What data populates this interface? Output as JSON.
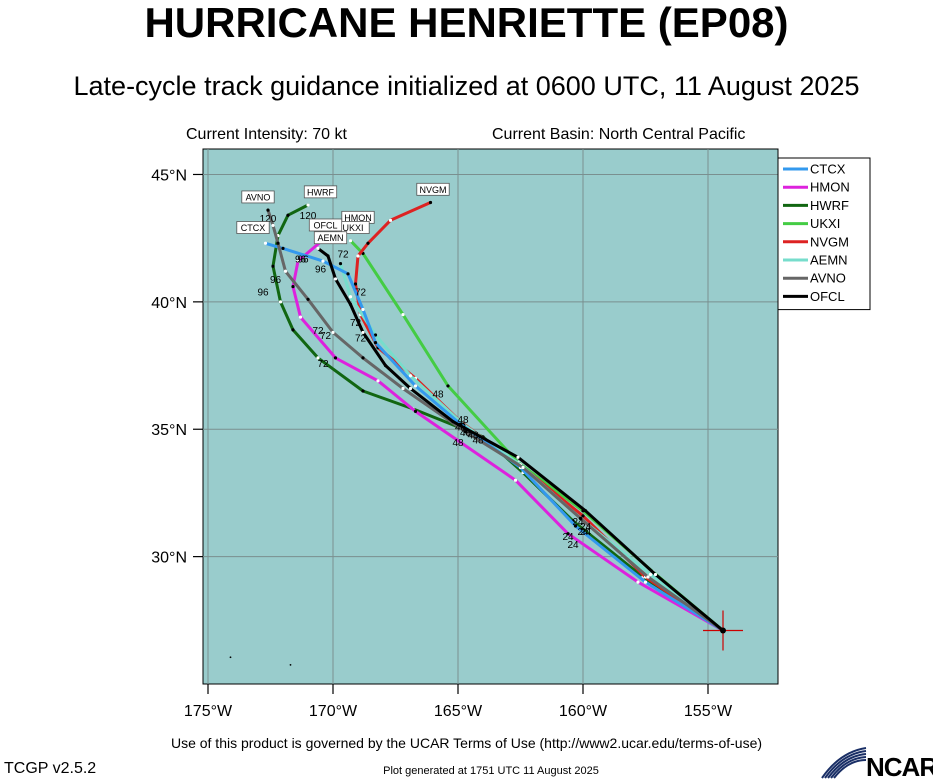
{
  "header": {
    "title": "HURRICANE HENRIETTE (EP08)",
    "subtitle": "Late-cycle track guidance initialized at 0600 UTC, 11 August 2025",
    "intensity": "Current Intensity: 70 kt",
    "basin": "Current Basin: North Central Pacific"
  },
  "footer": {
    "terms": "Use of this product is governed by the UCAR Terms of Use (http://www2.ucar.edu/terms-of-use)",
    "version": "TCGP v2.5.2",
    "generated": "Plot generated at 1751 UTC   11 August 2025",
    "logo_text": "NCAR"
  },
  "colors": {
    "ocean": "#99cccc",
    "grid": "#7a8f8f",
    "current_position": "#cc0000"
  },
  "chart_data": {
    "type": "line",
    "xlabel": "",
    "ylabel": "",
    "xlim": [
      -175.2,
      -152.2
    ],
    "ylim": [
      25,
      46
    ],
    "x_ticks": [
      {
        "value": -175,
        "label": "175°W"
      },
      {
        "value": -170,
        "label": "170°W"
      },
      {
        "value": -165,
        "label": "165°W"
      },
      {
        "value": -160,
        "label": "160°W"
      },
      {
        "value": -155,
        "label": "155°W"
      }
    ],
    "y_ticks": [
      {
        "value": 30,
        "label": "30°N"
      },
      {
        "value": 35,
        "label": "35°N"
      },
      {
        "value": 40,
        "label": "40°N"
      },
      {
        "value": 45,
        "label": "45°N"
      }
    ],
    "grid": true,
    "legend_position": "top-right",
    "current_position": {
      "lon": -154.4,
      "lat": 27.1
    },
    "series": [
      {
        "name": "CTCX",
        "color": "#3399ee",
        "points": [
          [
            -154.4,
            27.1
          ],
          [
            -157.5,
            29.0
          ],
          [
            -160.3,
            31.2
          ],
          [
            -162.5,
            33.5
          ],
          [
            -164.9,
            35.2
          ],
          [
            -166.7,
            36.7
          ],
          [
            -168.3,
            38.4
          ],
          [
            -168.8,
            39.7
          ],
          [
            -169.4,
            41.1
          ],
          [
            -170.4,
            41.6
          ],
          [
            -172.0,
            42.1
          ],
          [
            -172.7,
            42.3
          ]
        ],
        "labels": [
          {
            "text": "24",
            "lon": -160.0,
            "lat": 31.0
          },
          {
            "text": "48",
            "lon": -164.8,
            "lat": 35.4
          },
          {
            "text": "72",
            "lon": -168.9,
            "lat": 40.4
          },
          {
            "text": "96",
            "lon": -171.2,
            "lat": 41.7
          }
        ],
        "tag": {
          "text": "CTCX",
          "lon": -173.2,
          "lat": 42.8
        }
      },
      {
        "name": "HMON",
        "color": "#dd22dd",
        "points": [
          [
            -154.4,
            27.1
          ],
          [
            -157.8,
            29.0
          ],
          [
            -160.6,
            30.9
          ],
          [
            -162.7,
            33.0
          ],
          [
            -166.7,
            35.7
          ],
          [
            -168.2,
            36.9
          ],
          [
            -169.9,
            37.8
          ],
          [
            -171.3,
            39.4
          ],
          [
            -171.6,
            40.6
          ],
          [
            -171.4,
            41.6
          ],
          [
            -170.2,
            42.6
          ],
          [
            -169.2,
            42.8
          ]
        ],
        "labels": [
          {
            "text": "24",
            "lon": -160.4,
            "lat": 30.5
          },
          {
            "text": "48",
            "lon": -164.2,
            "lat": 34.6
          },
          {
            "text": "72",
            "lon": -170.3,
            "lat": 38.7
          },
          {
            "text": "96",
            "lon": -171.3,
            "lat": 41.7
          }
        ],
        "tag": {
          "text": "HMON",
          "lon": -169.0,
          "lat": 43.2
        }
      },
      {
        "name": "HWRF",
        "color": "#116611",
        "points": [
          [
            -154.4,
            27.1
          ],
          [
            -157.6,
            29.2
          ],
          [
            -160.4,
            31.4
          ],
          [
            -162.4,
            33.3
          ],
          [
            -164.0,
            34.7
          ],
          [
            -166.8,
            35.8
          ],
          [
            -168.8,
            36.5
          ],
          [
            -170.6,
            37.8
          ],
          [
            -171.6,
            38.9
          ],
          [
            -172.1,
            40.0
          ],
          [
            -172.4,
            41.4
          ],
          [
            -172.2,
            42.6
          ],
          [
            -171.8,
            43.4
          ],
          [
            -171.0,
            43.8
          ]
        ],
        "labels": [
          {
            "text": "24",
            "lon": -160.6,
            "lat": 30.8
          },
          {
            "text": "48",
            "lon": -165.0,
            "lat": 34.5
          },
          {
            "text": "72",
            "lon": -170.4,
            "lat": 37.6
          },
          {
            "text": "96",
            "lon": -172.8,
            "lat": 40.4
          },
          {
            "text": "120",
            "lon": -171.0,
            "lat": 43.4
          }
        ],
        "tag": {
          "text": "HWRF",
          "lon": -170.5,
          "lat": 44.2
        }
      },
      {
        "name": "UKXI",
        "color": "#44cc44",
        "points": [
          [
            -154.4,
            27.1
          ],
          [
            -157.2,
            29.4
          ],
          [
            -160.0,
            31.8
          ],
          [
            -162.6,
            33.7
          ],
          [
            -165.4,
            36.7
          ],
          [
            -167.2,
            39.5
          ],
          [
            -168.8,
            41.9
          ],
          [
            -169.3,
            42.4
          ]
        ],
        "labels": [
          {
            "text": "24",
            "lon": -160.2,
            "lat": 31.4
          },
          {
            "text": "48",
            "lon": -165.8,
            "lat": 36.4
          },
          {
            "text": "72",
            "lon": -169.6,
            "lat": 41.9
          },
          {
            "text": "120",
            "lon": -169.8,
            "lat": 42.6
          }
        ],
        "tag": {
          "text": "UKXI",
          "lon": -169.2,
          "lat": 42.8
        }
      },
      {
        "name": "NVGM",
        "color": "#dd2222",
        "points": [
          [
            -154.4,
            27.1
          ],
          [
            -157.5,
            29.2
          ],
          [
            -160.0,
            31.6
          ],
          [
            -162.4,
            33.5
          ],
          [
            -164.9,
            35.3
          ],
          [
            -166.7,
            37.0
          ],
          [
            -168.2,
            38.2
          ],
          [
            -168.9,
            39.5
          ],
          [
            -169.1,
            40.7
          ],
          [
            -169.0,
            41.8
          ],
          [
            -168.6,
            42.3
          ],
          [
            -167.7,
            43.2
          ],
          [
            -166.1,
            43.9
          ]
        ],
        "labels": [],
        "tag": {
          "text": "NVGM",
          "lon": -166.0,
          "lat": 44.3
        }
      },
      {
        "name": "AEMN",
        "color": "#77ddcc",
        "points": [
          [
            -154.4,
            27.1
          ],
          [
            -157.3,
            29.3
          ],
          [
            -160.1,
            31.5
          ],
          [
            -162.5,
            33.6
          ],
          [
            -164.8,
            35.2
          ],
          [
            -166.9,
            37.1
          ],
          [
            -168.3,
            38.7
          ],
          [
            -169.3,
            40.2
          ],
          [
            -169.7,
            41.5
          ]
        ],
        "labels": [
          {
            "text": "48",
            "lon": -164.9,
            "lat": 35.1
          },
          {
            "text": "72",
            "lon": -169.1,
            "lat": 39.2
          }
        ],
        "tag": {
          "text": "AEMN",
          "lon": -170.1,
          "lat": 42.4
        }
      },
      {
        "name": "AVNO",
        "color": "#666666",
        "points": [
          [
            -154.4,
            27.1
          ],
          [
            -157.4,
            29.2
          ],
          [
            -160.1,
            31.5
          ],
          [
            -162.4,
            33.5
          ],
          [
            -164.7,
            34.9
          ],
          [
            -167.2,
            36.6
          ],
          [
            -168.8,
            37.8
          ],
          [
            -170.0,
            38.8
          ],
          [
            -171.0,
            40.1
          ],
          [
            -171.9,
            41.2
          ],
          [
            -172.2,
            42.3
          ],
          [
            -172.4,
            43.0
          ],
          [
            -172.6,
            43.6
          ]
        ],
        "labels": [
          {
            "text": "24",
            "lon": -159.9,
            "lat": 31.0
          },
          {
            "text": "48",
            "lon": -164.4,
            "lat": 34.8
          },
          {
            "text": "72",
            "lon": -170.6,
            "lat": 38.9
          },
          {
            "text": "96",
            "lon": -172.3,
            "lat": 40.9
          },
          {
            "text": "120",
            "lon": -172.6,
            "lat": 43.3
          }
        ],
        "tag": {
          "text": "AVNO",
          "lon": -173.0,
          "lat": 44.0
        }
      },
      {
        "name": "OFCL",
        "color": "#000000",
        "points": [
          [
            -154.4,
            27.1
          ],
          [
            -157.1,
            29.3
          ],
          [
            -159.9,
            31.8
          ],
          [
            -162.6,
            33.9
          ],
          [
            -165.2,
            35.3
          ],
          [
            -166.9,
            36.6
          ],
          [
            -167.9,
            37.5
          ],
          [
            -168.8,
            38.8
          ],
          [
            -169.3,
            39.9
          ],
          [
            -169.9,
            40.9
          ],
          [
            -170.2,
            41.8
          ],
          [
            -170.6,
            42.1
          ]
        ],
        "labels": [
          {
            "text": "24",
            "lon": -159.9,
            "lat": 31.2
          },
          {
            "text": "48",
            "lon": -164.7,
            "lat": 34.9
          },
          {
            "text": "72",
            "lon": -168.9,
            "lat": 38.6
          },
          {
            "text": "96",
            "lon": -170.5,
            "lat": 41.3
          }
        ],
        "tag": {
          "text": "OFCL",
          "lon": -170.3,
          "lat": 42.9
        }
      }
    ]
  }
}
